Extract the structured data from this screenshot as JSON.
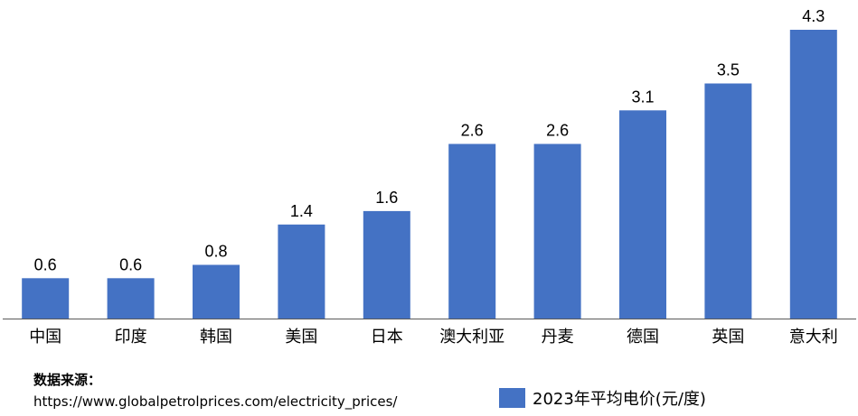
{
  "chart_data": {
    "type": "bar",
    "categories": [
      "中国",
      "印度",
      "韩国",
      "美国",
      "日本",
      "澳大利亚",
      "丹麦",
      "德国",
      "英国",
      "意大利"
    ],
    "series": [
      {
        "name": "2023年平均电价(元/度)",
        "values": [
          0.6,
          0.6,
          0.8,
          1.4,
          1.6,
          2.6,
          2.6,
          3.1,
          3.5,
          4.3
        ],
        "color": "#4472C4"
      }
    ],
    "data_labels": [
      "0.6",
      "0.6",
      "0.8",
      "1.4",
      "1.6",
      "2.6",
      "2.6",
      "3.1",
      "3.5",
      "4.3"
    ],
    "ylim": [
      0,
      4.3
    ],
    "grid": false,
    "legend_position": "bottom-right"
  },
  "source": {
    "title": "数据来源：",
    "url": "https://www.globalpetrolprices.com/electricity_prices/"
  }
}
